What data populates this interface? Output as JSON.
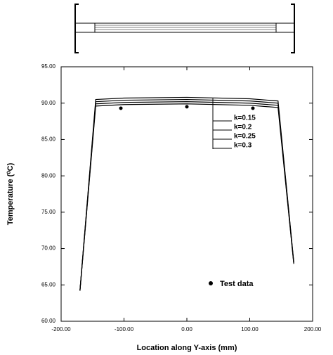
{
  "chart_data": {
    "type": "line",
    "xlabel": "Location along Y-axis (mm)",
    "ylabel": "Temperature (⁰C)",
    "x": [
      -170,
      -145,
      -100,
      0,
      100,
      145,
      170
    ],
    "series": [
      {
        "name": "k=0.15",
        "color": "#000000",
        "mode": "line",
        "values": [
          64.3,
          90.5,
          90.7,
          90.8,
          90.6,
          90.3,
          68.2
        ]
      },
      {
        "name": "k=0.2",
        "color": "#000000",
        "mode": "line",
        "values": [
          64.3,
          90.2,
          90.4,
          90.5,
          90.3,
          90.0,
          68.1
        ]
      },
      {
        "name": "k=0.25",
        "color": "#000000",
        "mode": "line",
        "values": [
          64.2,
          89.9,
          90.1,
          90.2,
          90.0,
          89.7,
          68.0
        ]
      },
      {
        "name": "k=0.3",
        "color": "#000000",
        "mode": "line",
        "values": [
          64.2,
          89.6,
          89.8,
          89.9,
          89.7,
          89.4,
          67.9
        ]
      },
      {
        "name": "Test data",
        "color": "#000000",
        "mode": "markers",
        "x": [
          -105,
          0,
          105
        ],
        "values": [
          89.3,
          89.5,
          89.3
        ]
      }
    ],
    "xlim": [
      -200,
      200
    ],
    "xticks": [
      {
        "value": -200,
        "label": "-200.00"
      },
      {
        "value": -100,
        "label": "-100.00"
      },
      {
        "value": 0,
        "label": "0.00"
      },
      {
        "value": 100,
        "label": "100.00"
      },
      {
        "value": 200,
        "label": "200.00"
      }
    ],
    "ylim": [
      60,
      95
    ],
    "yticks": [
      {
        "value": 60,
        "label": "60.00"
      },
      {
        "value": 65,
        "label": "65.00"
      },
      {
        "value": 70,
        "label": "70.00"
      },
      {
        "value": 75,
        "label": "75.00"
      },
      {
        "value": 80,
        "label": "80.00"
      },
      {
        "value": 85,
        "label": "85.00"
      },
      {
        "value": 90,
        "label": "90.00"
      },
      {
        "value": 95,
        "label": "95.00"
      }
    ],
    "grid": false
  }
}
